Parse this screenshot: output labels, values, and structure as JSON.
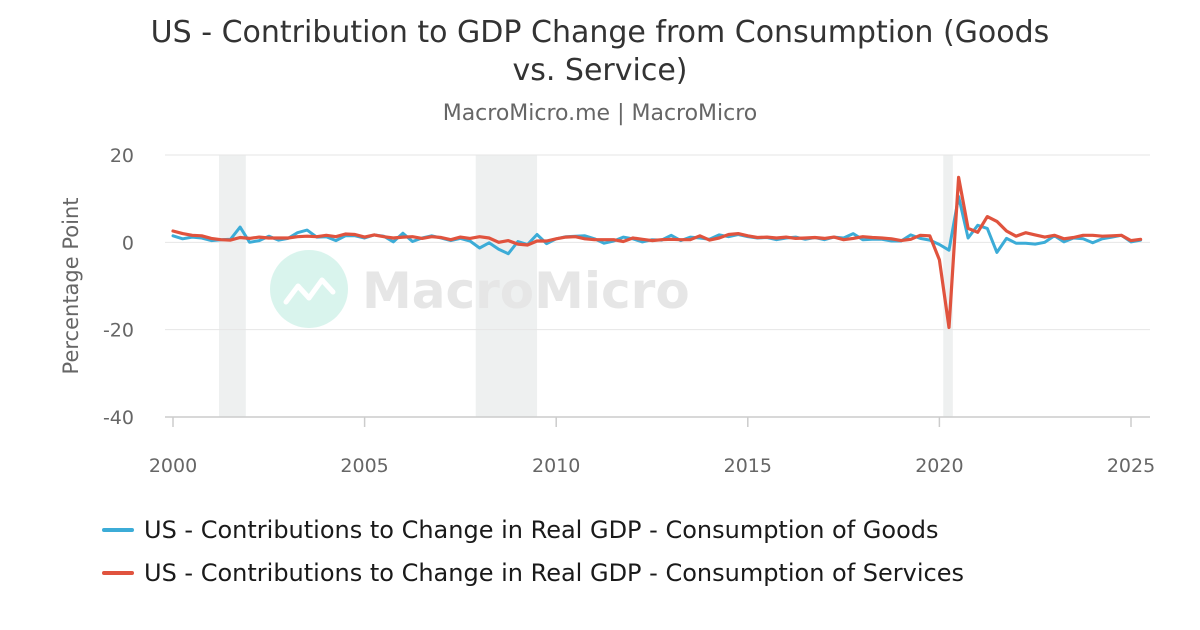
{
  "chart_data": {
    "type": "line",
    "title": "US - Contribution to GDP Change from Consumption (Goods vs. Service)",
    "subtitle": "MacroMicro.me | MacroMicro",
    "watermark": "MacroMicro",
    "ylabel": "Percentage Point",
    "xlabel": "",
    "xlim": [
      2000,
      2025.5
    ],
    "ylim": [
      -40,
      20
    ],
    "x_ticks": [
      2000,
      2005,
      2010,
      2015,
      2020,
      2025
    ],
    "y_ticks": [
      20,
      0,
      -20,
      -40
    ],
    "grid": true,
    "legend_position": "bottom",
    "recession_periods": [
      [
        2001.2,
        2001.9
      ],
      [
        2007.9,
        2009.5
      ],
      [
        2020.1,
        2020.35
      ]
    ],
    "series": [
      {
        "name": "US - Contributions to Change in Real GDP - Consumption of Goods",
        "color": "#3cacd7",
        "points": [
          [
            2000.0,
            1.5
          ],
          [
            2000.25,
            0.8
          ],
          [
            2000.5,
            1.2
          ],
          [
            2000.75,
            1.0
          ],
          [
            2001.0,
            0.4
          ],
          [
            2001.25,
            0.6
          ],
          [
            2001.5,
            0.7
          ],
          [
            2001.75,
            3.5
          ],
          [
            2002.0,
            0.0
          ],
          [
            2002.25,
            0.4
          ],
          [
            2002.5,
            1.4
          ],
          [
            2002.75,
            0.5
          ],
          [
            2003.0,
            0.9
          ],
          [
            2003.25,
            2.2
          ],
          [
            2003.5,
            2.8
          ],
          [
            2003.75,
            1.2
          ],
          [
            2004.0,
            1.3
          ],
          [
            2004.25,
            0.4
          ],
          [
            2004.5,
            1.5
          ],
          [
            2004.75,
            1.5
          ],
          [
            2005.0,
            1.0
          ],
          [
            2005.25,
            1.7
          ],
          [
            2005.5,
            1.4
          ],
          [
            2005.75,
            0.1
          ],
          [
            2006.0,
            2.1
          ],
          [
            2006.25,
            0.2
          ],
          [
            2006.5,
            1.0
          ],
          [
            2006.75,
            1.5
          ],
          [
            2007.0,
            1.0
          ],
          [
            2007.25,
            0.4
          ],
          [
            2007.5,
            0.9
          ],
          [
            2007.75,
            0.3
          ],
          [
            2008.0,
            -1.3
          ],
          [
            2008.25,
            -0.1
          ],
          [
            2008.5,
            -1.6
          ],
          [
            2008.75,
            -2.6
          ],
          [
            2009.0,
            0.2
          ],
          [
            2009.25,
            -0.5
          ],
          [
            2009.5,
            1.8
          ],
          [
            2009.75,
            -0.3
          ],
          [
            2010.0,
            0.8
          ],
          [
            2010.25,
            1.3
          ],
          [
            2010.5,
            1.4
          ],
          [
            2010.75,
            1.5
          ],
          [
            2011.0,
            0.8
          ],
          [
            2011.25,
            -0.2
          ],
          [
            2011.5,
            0.3
          ],
          [
            2011.75,
            1.2
          ],
          [
            2012.0,
            0.8
          ],
          [
            2012.25,
            0.1
          ],
          [
            2012.5,
            0.6
          ],
          [
            2012.75,
            0.5
          ],
          [
            2013.0,
            1.6
          ],
          [
            2013.25,
            0.4
          ],
          [
            2013.5,
            1.2
          ],
          [
            2013.75,
            1.0
          ],
          [
            2014.0,
            0.7
          ],
          [
            2014.25,
            1.7
          ],
          [
            2014.5,
            1.3
          ],
          [
            2014.75,
            1.8
          ],
          [
            2015.0,
            1.3
          ],
          [
            2015.25,
            1.0
          ],
          [
            2015.5,
            1.1
          ],
          [
            2015.75,
            0.6
          ],
          [
            2016.0,
            1.0
          ],
          [
            2016.25,
            1.2
          ],
          [
            2016.5,
            0.7
          ],
          [
            2016.75,
            1.1
          ],
          [
            2017.0,
            0.6
          ],
          [
            2017.25,
            1.2
          ],
          [
            2017.5,
            1.0
          ],
          [
            2017.75,
            2.0
          ],
          [
            2018.0,
            0.6
          ],
          [
            2018.25,
            0.7
          ],
          [
            2018.5,
            0.7
          ],
          [
            2018.75,
            0.3
          ],
          [
            2019.0,
            0.3
          ],
          [
            2019.25,
            1.7
          ],
          [
            2019.5,
            0.9
          ],
          [
            2019.75,
            0.5
          ],
          [
            2020.0,
            -0.5
          ],
          [
            2020.25,
            -1.8
          ],
          [
            2020.5,
            10.5
          ],
          [
            2020.75,
            1.0
          ],
          [
            2021.0,
            3.9
          ],
          [
            2021.25,
            3.2
          ],
          [
            2021.5,
            -2.3
          ],
          [
            2021.75,
            0.9
          ],
          [
            2022.0,
            -0.2
          ],
          [
            2022.25,
            -0.2
          ],
          [
            2022.5,
            -0.4
          ],
          [
            2022.75,
            0.0
          ],
          [
            2023.0,
            1.5
          ],
          [
            2023.25,
            0.1
          ],
          [
            2023.5,
            1.0
          ],
          [
            2023.75,
            0.8
          ],
          [
            2024.0,
            -0.1
          ],
          [
            2024.25,
            0.8
          ],
          [
            2024.5,
            1.2
          ],
          [
            2024.75,
            1.6
          ],
          [
            2025.0,
            0.1
          ],
          [
            2025.25,
            0.5
          ]
        ]
      },
      {
        "name": "US - Contributions to Change in Real GDP - Consumption of Services",
        "color": "#e0533e",
        "points": [
          [
            2000.0,
            2.6
          ],
          [
            2000.25,
            2.0
          ],
          [
            2000.5,
            1.6
          ],
          [
            2000.75,
            1.5
          ],
          [
            2001.0,
            0.9
          ],
          [
            2001.25,
            0.6
          ],
          [
            2001.5,
            0.5
          ],
          [
            2001.75,
            1.1
          ],
          [
            2002.0,
            0.9
          ],
          [
            2002.25,
            1.2
          ],
          [
            2002.5,
            1.0
          ],
          [
            2002.75,
            1.0
          ],
          [
            2003.0,
            1.0
          ],
          [
            2003.25,
            1.3
          ],
          [
            2003.5,
            1.4
          ],
          [
            2003.75,
            1.3
          ],
          [
            2004.0,
            1.6
          ],
          [
            2004.25,
            1.3
          ],
          [
            2004.5,
            1.9
          ],
          [
            2004.75,
            1.8
          ],
          [
            2005.0,
            1.2
          ],
          [
            2005.25,
            1.7
          ],
          [
            2005.5,
            1.3
          ],
          [
            2005.75,
            1.0
          ],
          [
            2006.0,
            1.2
          ],
          [
            2006.25,
            1.3
          ],
          [
            2006.5,
            0.9
          ],
          [
            2006.75,
            1.3
          ],
          [
            2007.0,
            1.1
          ],
          [
            2007.25,
            0.6
          ],
          [
            2007.5,
            1.2
          ],
          [
            2007.75,
            0.9
          ],
          [
            2008.0,
            1.3
          ],
          [
            2008.25,
            1.0
          ],
          [
            2008.5,
            0.0
          ],
          [
            2008.75,
            0.4
          ],
          [
            2009.0,
            -0.4
          ],
          [
            2009.25,
            -0.6
          ],
          [
            2009.5,
            0.3
          ],
          [
            2009.75,
            0.3
          ],
          [
            2010.0,
            0.8
          ],
          [
            2010.25,
            1.2
          ],
          [
            2010.5,
            1.3
          ],
          [
            2010.75,
            0.8
          ],
          [
            2011.0,
            0.6
          ],
          [
            2011.25,
            0.6
          ],
          [
            2011.5,
            0.6
          ],
          [
            2011.75,
            0.2
          ],
          [
            2012.0,
            1.0
          ],
          [
            2012.25,
            0.7
          ],
          [
            2012.5,
            0.4
          ],
          [
            2012.75,
            0.6
          ],
          [
            2013.0,
            0.7
          ],
          [
            2013.25,
            0.6
          ],
          [
            2013.5,
            0.6
          ],
          [
            2013.75,
            1.5
          ],
          [
            2014.0,
            0.5
          ],
          [
            2014.25,
            1.0
          ],
          [
            2014.5,
            1.8
          ],
          [
            2014.75,
            2.0
          ],
          [
            2015.0,
            1.5
          ],
          [
            2015.25,
            1.1
          ],
          [
            2015.5,
            1.2
          ],
          [
            2015.75,
            1.0
          ],
          [
            2016.0,
            1.2
          ],
          [
            2016.25,
            0.9
          ],
          [
            2016.5,
            1.0
          ],
          [
            2016.75,
            1.1
          ],
          [
            2017.0,
            0.9
          ],
          [
            2017.25,
            1.2
          ],
          [
            2017.5,
            0.6
          ],
          [
            2017.75,
            0.9
          ],
          [
            2018.0,
            1.3
          ],
          [
            2018.25,
            1.1
          ],
          [
            2018.5,
            1.0
          ],
          [
            2018.75,
            0.8
          ],
          [
            2019.0,
            0.4
          ],
          [
            2019.25,
            0.7
          ],
          [
            2019.5,
            1.6
          ],
          [
            2019.75,
            1.5
          ],
          [
            2020.0,
            -4.0
          ],
          [
            2020.25,
            -19.5
          ],
          [
            2020.5,
            14.9
          ],
          [
            2020.75,
            3.2
          ],
          [
            2021.0,
            2.3
          ],
          [
            2021.25,
            5.9
          ],
          [
            2021.5,
            4.8
          ],
          [
            2021.75,
            2.6
          ],
          [
            2022.0,
            1.4
          ],
          [
            2022.25,
            2.2
          ],
          [
            2022.5,
            1.7
          ],
          [
            2022.75,
            1.2
          ],
          [
            2023.0,
            1.6
          ],
          [
            2023.25,
            0.8
          ],
          [
            2023.5,
            1.1
          ],
          [
            2023.75,
            1.6
          ],
          [
            2024.0,
            1.6
          ],
          [
            2024.25,
            1.4
          ],
          [
            2024.5,
            1.5
          ],
          [
            2024.75,
            1.6
          ],
          [
            2025.0,
            0.4
          ],
          [
            2025.25,
            0.7
          ]
        ]
      }
    ]
  }
}
